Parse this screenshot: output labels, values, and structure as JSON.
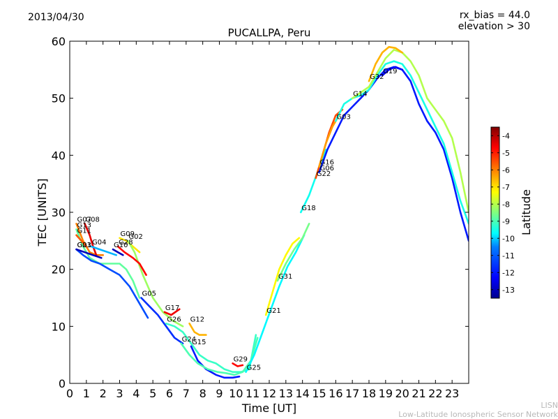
{
  "header": {
    "date": "2013/04/30",
    "rx_bias": "rx_bias = 44.0",
    "elevation": "elevation > 30"
  },
  "watermark": {
    "line1": "LISN",
    "line2": "Low-Latitude Ionospheric Sensor Network"
  },
  "chart_data": {
    "type": "line",
    "title": "PUCALLPA, Peru",
    "xlabel": "Time [UT]",
    "ylabel": "TEC [UNITS]",
    "xlim": [
      0,
      24
    ],
    "ylim": [
      0,
      60
    ],
    "xticks": [
      0,
      1,
      2,
      3,
      4,
      5,
      6,
      7,
      8,
      9,
      10,
      11,
      12,
      13,
      14,
      15,
      16,
      17,
      18,
      19,
      20,
      21,
      22,
      23
    ],
    "yticks": [
      0,
      10,
      20,
      30,
      40,
      50,
      60
    ],
    "grid": false,
    "colorbar": {
      "label": "Latitude",
      "range": [
        -13.5,
        -3.5
      ],
      "ticks": [
        -4,
        -5,
        -6,
        -7,
        -8,
        -9,
        -10,
        -11,
        -12,
        -13
      ],
      "colormap": [
        "#00008f",
        "#0000ff",
        "#0080ff",
        "#00ffff",
        "#80ff80",
        "#ffff00",
        "#ff8000",
        "#ff0000",
        "#800000"
      ]
    },
    "series": [
      {
        "name": "G07",
        "lat": -6.0,
        "x": [
          0.4,
          0.8,
          1.2,
          1.6,
          2.0
        ],
        "y": [
          28,
          25,
          23,
          22.5,
          22.5
        ]
      },
      {
        "name": "G08",
        "lat": -4.5,
        "x": [
          0.9,
          1.2,
          1.4,
          1.6
        ],
        "y": [
          28,
          26,
          24,
          22.5
        ]
      },
      {
        "name": "G13",
        "lat": -8.8,
        "x": [
          0.4,
          0.8,
          1.2,
          1.8,
          2.4,
          3.0,
          3.4,
          3.8,
          4.2
        ],
        "y": [
          27,
          24,
          22,
          21,
          21,
          21,
          20,
          18,
          15
        ]
      },
      {
        "name": "G11",
        "lat": -5.6,
        "x": [
          0.4,
          0.7,
          1.0
        ],
        "y": [
          26,
          25,
          24
        ]
      },
      {
        "name": "G23",
        "lat": -11.5,
        "x": [
          0.4,
          0.8,
          1.3,
          1.8,
          2.4,
          3.0,
          3.6,
          4.2,
          4.7
        ],
        "y": [
          23.5,
          22.5,
          21.5,
          21,
          20,
          19,
          17,
          14,
          11.5
        ]
      },
      {
        "name": "G01",
        "lat": -13.0,
        "x": [
          0.4,
          0.9,
          1.4,
          1.9
        ],
        "y": [
          23.5,
          23,
          22.5,
          22
        ]
      },
      {
        "name": "G04",
        "lat": -10.5,
        "x": [
          1.3,
          1.8,
          2.3,
          2.8
        ],
        "y": [
          24,
          23.5,
          23,
          22.5
        ]
      },
      {
        "name": "G09",
        "lat": -7.0,
        "x": [
          3.0,
          3.4,
          3.8,
          4.2
        ],
        "y": [
          25.5,
          25,
          24,
          23
        ]
      },
      {
        "name": "G02",
        "lat": -8.2,
        "x": [
          3.5,
          3.9,
          4.4,
          5.0,
          5.6,
          6.2,
          6.8
        ],
        "y": [
          25,
          23,
          19,
          15,
          12.5,
          11,
          10
        ]
      },
      {
        "name": "G28",
        "lat": -4.8,
        "x": [
          2.9,
          3.3,
          3.8,
          4.2,
          4.6
        ],
        "y": [
          24,
          23,
          22,
          21,
          19
        ]
      },
      {
        "name": "G10",
        "lat": -13.0,
        "x": [
          2.6,
          2.9,
          3.2
        ],
        "y": [
          23.5,
          23,
          22.5
        ]
      },
      {
        "name": "G05",
        "lat": -11.8,
        "x": [
          4.3,
          4.8,
          5.3,
          5.8,
          6.3,
          6.8
        ],
        "y": [
          15,
          13.5,
          12,
          10,
          8,
          7
        ]
      },
      {
        "name": "G17",
        "lat": -4.6,
        "x": [
          5.7,
          6.1,
          6.6
        ],
        "y": [
          12.5,
          12,
          13
        ]
      },
      {
        "name": "G26",
        "lat": -9.2,
        "x": [
          5.8,
          6.3,
          6.8,
          7.3,
          7.8,
          8.3,
          8.8,
          9.3,
          9.8,
          10.3,
          10.8,
          11.2
        ],
        "y": [
          10.5,
          10,
          9,
          7,
          5,
          4,
          3.5,
          2.5,
          2,
          2,
          2.5,
          8.5
        ]
      },
      {
        "name": "G12",
        "lat": -6.5,
        "x": [
          7.2,
          7.5,
          7.8,
          8.2
        ],
        "y": [
          10.5,
          9,
          8.5,
          8.5
        ]
      },
      {
        "name": "G15",
        "lat": -12.0,
        "x": [
          7.3,
          7.7,
          8.2,
          8.8,
          9.3,
          9.8,
          10.2
        ],
        "y": [
          6.5,
          4,
          2.5,
          1.5,
          1,
          1,
          1.2
        ]
      },
      {
        "name": "G24",
        "lat": -9.0,
        "x": [
          6.7,
          7.2,
          7.7,
          8.3,
          8.9,
          9.4,
          9.9,
          10.4,
          10.9,
          11.3
        ],
        "y": [
          7,
          5,
          3.5,
          2.5,
          2,
          1.8,
          1.5,
          2,
          4,
          8
        ]
      },
      {
        "name": "G29",
        "lat": -4.8,
        "x": [
          9.8,
          10.1,
          10.4
        ],
        "y": [
          3.5,
          3,
          3.2
        ]
      },
      {
        "name": "G25",
        "lat": -9.8,
        "x": [
          10.6,
          11.1,
          11.6,
          12.1,
          12.6,
          13.1,
          13.6,
          14.1
        ],
        "y": [
          2,
          5,
          9,
          13,
          17,
          20.5,
          23,
          26
        ]
      },
      {
        "name": "G21",
        "lat": -7.2,
        "x": [
          11.8,
          12.2,
          12.6,
          13.0,
          13.4,
          13.8
        ],
        "y": [
          12,
          16,
          20,
          22.5,
          24.5,
          25.5
        ]
      },
      {
        "name": "G31",
        "lat": -8.6,
        "x": [
          12.5,
          13.0,
          13.5,
          14.0,
          14.4
        ],
        "y": [
          18,
          21,
          23.5,
          25.5,
          28
        ]
      },
      {
        "name": "G18",
        "lat": -9.6,
        "x": [
          13.9,
          14.4,
          14.9,
          15.4
        ],
        "y": [
          30,
          33,
          37,
          41
        ]
      },
      {
        "name": "G22",
        "lat": -5.5,
        "x": [
          14.8,
          15.2,
          15.6,
          16.0,
          16.4
        ],
        "y": [
          36,
          40,
          44,
          47,
          48
        ]
      },
      {
        "name": "G16",
        "lat": -6.3,
        "x": [
          15.0,
          15.4,
          15.8,
          16.2
        ],
        "y": [
          38,
          42,
          45,
          47
        ]
      },
      {
        "name": "G06",
        "lat": -12.0,
        "x": [
          15.0,
          15.5,
          16.0,
          16.5,
          17.0,
          17.5,
          18.0,
          18.5,
          19.0,
          19.5,
          20.0,
          20.5,
          21.0,
          21.5,
          22.0,
          22.5,
          23.0,
          23.5,
          24.0
        ],
        "y": [
          37,
          41,
          44,
          47,
          48.5,
          50,
          51.5,
          53.5,
          55,
          55.5,
          55,
          53,
          49,
          46,
          44,
          41,
          36,
          30,
          25
        ]
      },
      {
        "name": "G03",
        "lat": -9.5,
        "x": [
          16.0,
          16.5,
          17.0,
          17.5,
          18.0,
          18.5,
          19.0,
          19.5,
          20.0,
          20.5,
          21.0,
          21.5,
          22.0,
          22.5,
          23.0,
          23.5,
          24.0
        ],
        "y": [
          46,
          49,
          50,
          50.5,
          51.5,
          54,
          56,
          56.5,
          56,
          54,
          51,
          48,
          45,
          42,
          37,
          32,
          28
        ]
      },
      {
        "name": "G14",
        "lat": -8.0,
        "x": [
          17.0,
          17.5,
          18.0,
          18.5,
          19.0,
          19.5,
          20.0,
          20.5,
          21.0,
          21.5,
          22.0,
          22.5,
          23.0,
          23.5,
          24.0
        ],
        "y": [
          50,
          51,
          52,
          54.5,
          57,
          58.5,
          58,
          56.5,
          54,
          50,
          48,
          46,
          43,
          37,
          30
        ]
      },
      {
        "name": "G32",
        "lat": -6.5,
        "x": [
          18.0,
          18.4,
          18.8,
          19.2,
          19.6,
          20.0
        ],
        "y": [
          53,
          56,
          58,
          59,
          58.8,
          58
        ]
      },
      {
        "name": "G19",
        "lat": -12.3,
        "x": [
          18.8,
          19.2,
          19.6,
          20.0
        ],
        "y": [
          54,
          55,
          55.5,
          55
        ]
      }
    ]
  }
}
